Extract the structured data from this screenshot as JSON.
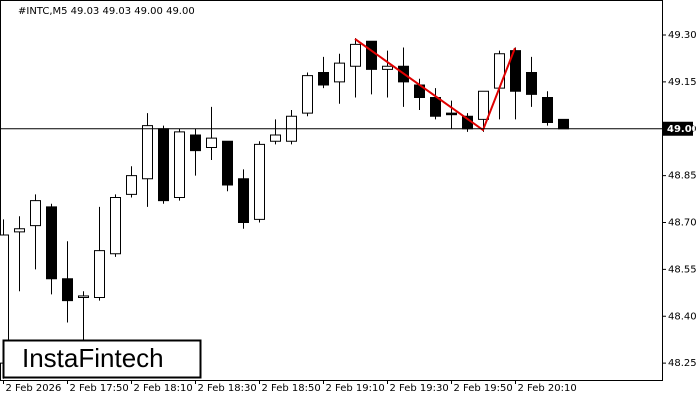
{
  "chart_data": {
    "type": "candlestick",
    "title": "#INTC,M5  49.03 49.03 49.00 49.00",
    "brand": "InstaFintech",
    "categories": [
      "2 Feb 2026",
      null,
      null,
      null,
      "2 Feb 17:50",
      null,
      null,
      null,
      "2 Feb 18:10",
      null,
      null,
      null,
      "2 Feb 18:30",
      null,
      null,
      null,
      "2 Feb 18:50",
      null,
      null,
      null,
      "2 Feb 19:10",
      null,
      null,
      null,
      "2 Feb 19:30",
      null,
      null,
      null,
      "2 Feb 19:50",
      null,
      null,
      null,
      "2 Feb 20:10",
      null,
      null,
      null
    ],
    "open": [
      48.25,
      48.67,
      48.69,
      48.75,
      48.52,
      48.46,
      48.46,
      48.6,
      48.79,
      48.84,
      49.0,
      48.78,
      48.98,
      48.94,
      48.96,
      48.84,
      48.71,
      48.96,
      48.96,
      49.05,
      49.18,
      49.15,
      49.2,
      49.28,
      49.19,
      49.2,
      49.14,
      49.1,
      49.05,
      49.04,
      49.03,
      49.13,
      49.25,
      49.18,
      49.1,
      49.03
    ],
    "high": [
      48.71,
      48.72,
      48.79,
      48.76,
      48.64,
      48.48,
      48.75,
      48.79,
      48.88,
      49.05,
      49.01,
      49.0,
      49.0,
      49.07,
      48.96,
      48.87,
      48.96,
      49.03,
      49.06,
      49.18,
      49.23,
      49.24,
      49.29,
      49.28,
      49.25,
      49.26,
      49.16,
      49.13,
      49.09,
      49.05,
      49.12,
      49.25,
      49.26,
      49.23,
      49.12,
      49.03
    ],
    "low": [
      48.2,
      48.48,
      48.55,
      48.47,
      48.38,
      48.32,
      48.45,
      48.59,
      48.78,
      48.75,
      48.76,
      48.77,
      48.85,
      48.9,
      48.8,
      48.68,
      48.7,
      48.95,
      48.95,
      49.04,
      49.13,
      49.08,
      49.1,
      49.11,
      49.1,
      49.07,
      49.06,
      49.03,
      49.0,
      48.99,
      48.99,
      49.03,
      49.03,
      49.07,
      49.01,
      49.0
    ],
    "close": [
      48.66,
      48.68,
      48.77,
      48.52,
      48.45,
      48.465,
      48.61,
      48.78,
      48.85,
      49.01,
      48.77,
      48.99,
      48.93,
      48.97,
      48.82,
      48.7,
      48.95,
      48.98,
      49.04,
      49.17,
      49.14,
      49.21,
      49.27,
      49.19,
      49.2,
      49.15,
      49.1,
      49.04,
      49.045,
      49.0,
      49.12,
      49.24,
      49.12,
      49.11,
      49.02,
      49.0
    ],
    "up_color": "#ffffff",
    "down_color": "#000000",
    "ylim": [
      48.196,
      49.412
    ],
    "yticks": [
      48.25,
      {
        "value": 48.4,
        "label": "48.40"
      },
      48.55,
      {
        "value": 48.7,
        "label": "48.70"
      },
      48.85,
      {
        "value": 49.0,
        "label": "49.00"
      },
      49.15,
      {
        "value": 49.3,
        "label": "49.30"
      }
    ],
    "current_price": {
      "value": 49.0,
      "label": "49.00"
    }
  }
}
